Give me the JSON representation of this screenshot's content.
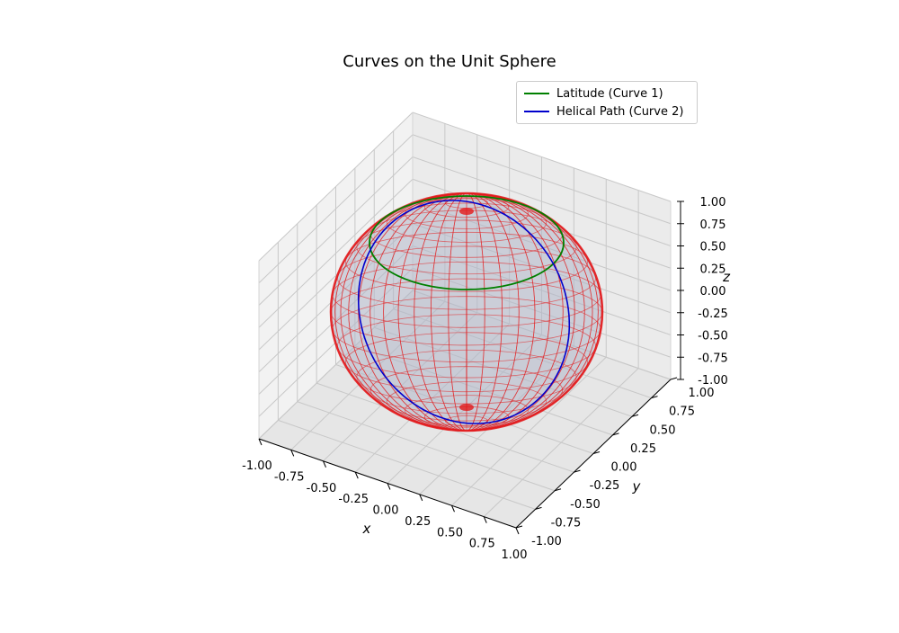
{
  "chart_data": {
    "type": "line",
    "title": "Curves on the Unit Sphere",
    "xlabel": "x",
    "ylabel": "y",
    "zlabel": "z",
    "xlim": [
      -1.0,
      1.0
    ],
    "ylim": [
      -1.0,
      1.0
    ],
    "zlim": [
      -1.0,
      1.0
    ],
    "ticks": [
      "-1.00",
      "-0.75",
      "-0.50",
      "-0.25",
      "0.00",
      "0.25",
      "0.50",
      "0.75",
      "1.00"
    ],
    "tick_values": [
      -1.0,
      -0.75,
      -0.5,
      -0.25,
      0.0,
      0.25,
      0.5,
      0.75,
      1.0
    ],
    "grid": true,
    "legend_placement": "top-right",
    "surface": {
      "shape": "unit sphere wireframe",
      "color": "#e31a1c",
      "face_color": "#b0b6c8"
    },
    "series": [
      {
        "name": "Latitude (Curve 1)",
        "color": "#008000",
        "description_of_points": "circle at constant height",
        "z": 0.7071
      },
      {
        "name": "Helical Path (Curve 2)",
        "color": "#0000cc",
        "description_of_points": "tilted great-circle-like path from bottom to top of sphere"
      }
    ]
  }
}
